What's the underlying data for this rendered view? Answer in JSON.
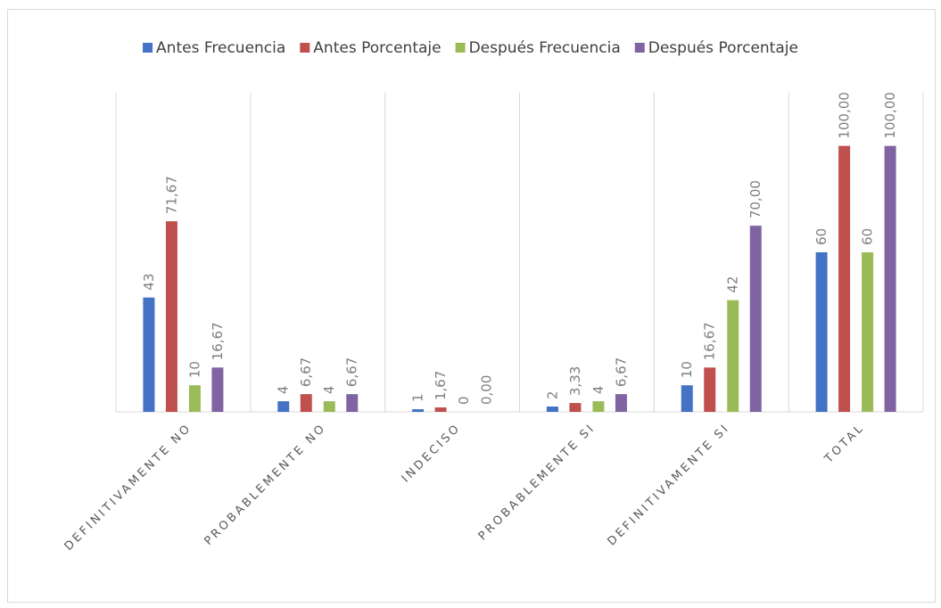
{
  "chart_data": {
    "type": "bar",
    "categories": [
      "DEFINITIVAMENTE NO",
      "PROBABLEMENTE NO",
      "INDECISO",
      "PROBABLEMENTE SI",
      "DEFINITIVAMENTE SI",
      "TOTAL"
    ],
    "series": [
      {
        "name": "Antes Frecuencia",
        "color": "#4472c4",
        "values": [
          43,
          4,
          1,
          2,
          10,
          60
        ]
      },
      {
        "name": "Antes Porcentaje",
        "color": "#c0504d",
        "values": [
          71.67,
          6.67,
          1.67,
          3.33,
          16.67,
          100
        ],
        "value_labels": [
          "71,67",
          "6,67",
          "1,67",
          "3,33",
          "16,67",
          "100,00"
        ]
      },
      {
        "name": "Después Frecuencia",
        "color": "#9bbb59",
        "values": [
          10,
          4,
          0,
          4,
          42,
          60
        ]
      },
      {
        "name": "Después Porcentaje",
        "color": "#8064a2",
        "values": [
          16.67,
          6.67,
          0,
          6.67,
          70,
          100
        ],
        "value_labels": [
          "16,67",
          "6,67",
          "0,00",
          "6,67",
          "70,00",
          "100,00"
        ]
      }
    ],
    "ylim": [
      0,
      120
    ],
    "legend": "top"
  }
}
